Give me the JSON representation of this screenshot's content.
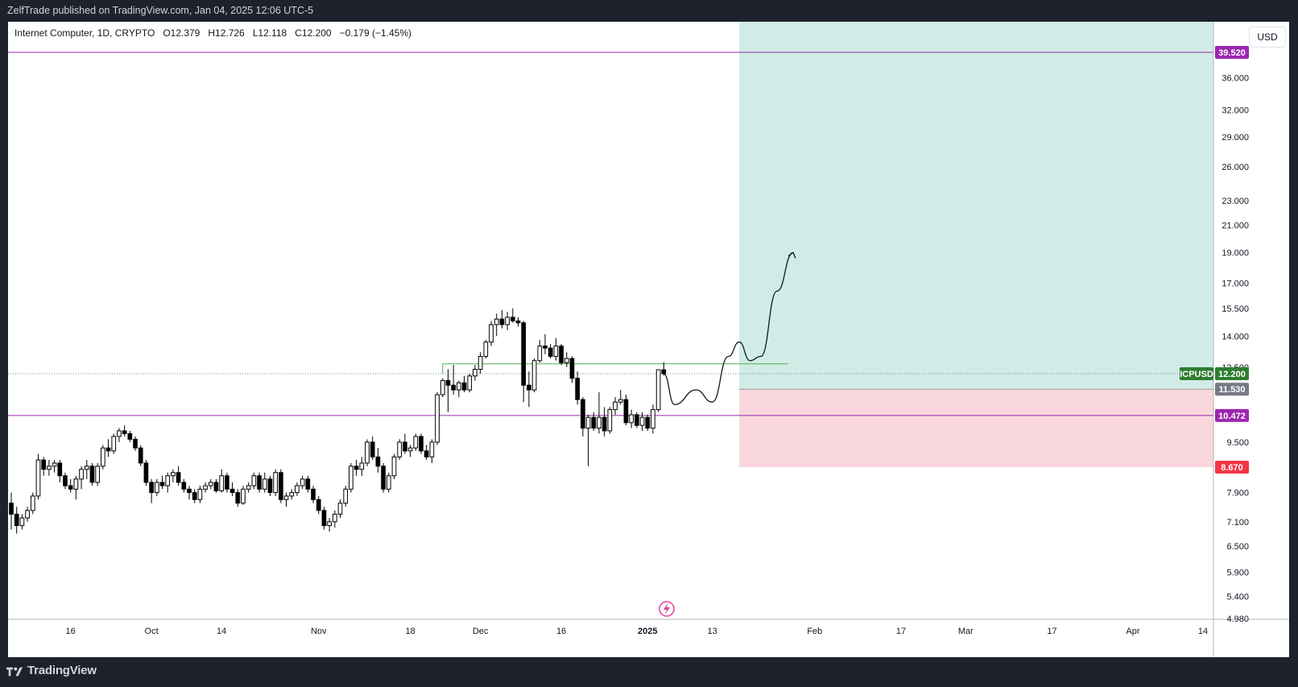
{
  "header": {
    "publish_line": "ZelfTrade published on TradingView.com, Jan 04, 2025 12:06 UTC-5"
  },
  "footer": {
    "brand": "TradingView",
    "logo_icon": "tradingview-logo-icon"
  },
  "legend": {
    "symbol": "Internet Computer, 1D, CRYPTO",
    "o_label": "O",
    "o_value": "12.379",
    "h_label": "H",
    "h_value": "12.726",
    "l_label": "L",
    "l_value": "12.118",
    "c_label": "C",
    "c_value": "12.200",
    "change": "−0.179 (−1.45%)"
  },
  "currency": "USD",
  "colors": {
    "background": "#ffffff",
    "frame": "#1e222d",
    "up_candle": "#ffffff",
    "down_candle": "#000000",
    "wick": "#000000",
    "horizontal_line": "#9c27b0",
    "resistance_line": "#4caf50",
    "target_zone": "#d1ece6",
    "stop_zone": "#fad7dc",
    "ticker_tag": "#2e7d32",
    "entry_tag": "#787b86",
    "stop_tag": "#f23645",
    "level_tag": "#9c27b0"
  },
  "chart_data": {
    "type": "candlestick",
    "symbol": "ICPUSD",
    "timeframe": "1D",
    "y_scale": "log",
    "ylim": [
      4.98,
      48
    ],
    "y_ticks": [
      "4.980",
      "5.400",
      "5.900",
      "6.500",
      "7.100",
      "7.900",
      "8.700",
      "9.500",
      "10.472",
      "11.530",
      "12.200",
      "12.500",
      "14.000",
      "15.500",
      "17.000",
      "19.000",
      "21.000",
      "23.000",
      "26.000",
      "29.000",
      "32.000",
      "36.000",
      "39.520"
    ],
    "x_ticks": [
      "16",
      "Oct",
      "14",
      "Nov",
      "18",
      "Dec",
      "16",
      "2025",
      "13",
      "Feb",
      "17",
      "Mar",
      "17",
      "Apr",
      "14"
    ],
    "x_range": [
      "2024-09-05",
      "2025-04-14"
    ],
    "candles": [
      {
        "date": "2024-09-05",
        "o": 7.6,
        "h": 7.9,
        "l": 6.9,
        "c": 7.3
      },
      {
        "date": "2024-09-06",
        "o": 7.3,
        "h": 7.5,
        "l": 6.8,
        "c": 7.0
      },
      {
        "date": "2024-09-07",
        "o": 7.0,
        "h": 7.3,
        "l": 6.9,
        "c": 7.2
      },
      {
        "date": "2024-09-08",
        "o": 7.2,
        "h": 7.5,
        "l": 7.1,
        "c": 7.4
      },
      {
        "date": "2024-09-09",
        "o": 7.4,
        "h": 7.9,
        "l": 7.3,
        "c": 7.8
      },
      {
        "date": "2024-09-10",
        "o": 7.8,
        "h": 9.1,
        "l": 7.7,
        "c": 8.9
      },
      {
        "date": "2024-09-11",
        "o": 8.9,
        "h": 9.0,
        "l": 8.4,
        "c": 8.6
      },
      {
        "date": "2024-09-12",
        "o": 8.6,
        "h": 8.9,
        "l": 8.4,
        "c": 8.7
      },
      {
        "date": "2024-09-13",
        "o": 8.7,
        "h": 8.9,
        "l": 8.5,
        "c": 8.8
      },
      {
        "date": "2024-09-14",
        "o": 8.8,
        "h": 8.9,
        "l": 8.2,
        "c": 8.4
      },
      {
        "date": "2024-09-15",
        "o": 8.4,
        "h": 8.5,
        "l": 8.0,
        "c": 8.1
      },
      {
        "date": "2024-09-16",
        "o": 8.1,
        "h": 8.3,
        "l": 7.9,
        "c": 8.0
      },
      {
        "date": "2024-09-17",
        "o": 8.0,
        "h": 8.4,
        "l": 7.7,
        "c": 8.3
      },
      {
        "date": "2024-09-18",
        "o": 8.3,
        "h": 8.7,
        "l": 8.0,
        "c": 8.6
      },
      {
        "date": "2024-09-19",
        "o": 8.6,
        "h": 8.9,
        "l": 8.3,
        "c": 8.7
      },
      {
        "date": "2024-09-20",
        "o": 8.7,
        "h": 8.8,
        "l": 8.1,
        "c": 8.2
      },
      {
        "date": "2024-09-21",
        "o": 8.2,
        "h": 8.8,
        "l": 8.1,
        "c": 8.7
      },
      {
        "date": "2024-09-22",
        "o": 8.7,
        "h": 9.4,
        "l": 8.6,
        "c": 9.3
      },
      {
        "date": "2024-09-23",
        "o": 9.3,
        "h": 9.6,
        "l": 9.0,
        "c": 9.2
      },
      {
        "date": "2024-09-24",
        "o": 9.2,
        "h": 9.8,
        "l": 9.1,
        "c": 9.7
      },
      {
        "date": "2024-09-25",
        "o": 9.7,
        "h": 10.0,
        "l": 9.5,
        "c": 9.9
      },
      {
        "date": "2024-09-26",
        "o": 9.9,
        "h": 10.1,
        "l": 9.7,
        "c": 9.8
      },
      {
        "date": "2024-09-27",
        "o": 9.8,
        "h": 9.9,
        "l": 9.5,
        "c": 9.6
      },
      {
        "date": "2024-09-28",
        "o": 9.6,
        "h": 9.7,
        "l": 9.2,
        "c": 9.3
      },
      {
        "date": "2024-09-29",
        "o": 9.3,
        "h": 9.4,
        "l": 8.7,
        "c": 8.8
      },
      {
        "date": "2024-09-30",
        "o": 8.8,
        "h": 8.9,
        "l": 8.1,
        "c": 8.2
      },
      {
        "date": "2024-10-01",
        "o": 8.2,
        "h": 8.3,
        "l": 7.6,
        "c": 7.9
      },
      {
        "date": "2024-10-02",
        "o": 7.9,
        "h": 8.3,
        "l": 7.8,
        "c": 8.2
      },
      {
        "date": "2024-10-03",
        "o": 8.2,
        "h": 8.4,
        "l": 8.0,
        "c": 8.1
      },
      {
        "date": "2024-10-04",
        "o": 8.1,
        "h": 8.5,
        "l": 7.9,
        "c": 8.4
      },
      {
        "date": "2024-10-05",
        "o": 8.4,
        "h": 8.6,
        "l": 8.2,
        "c": 8.5
      },
      {
        "date": "2024-10-06",
        "o": 8.5,
        "h": 8.7,
        "l": 8.1,
        "c": 8.2
      },
      {
        "date": "2024-10-07",
        "o": 8.2,
        "h": 8.3,
        "l": 7.9,
        "c": 8.0
      },
      {
        "date": "2024-10-08",
        "o": 8.0,
        "h": 8.1,
        "l": 7.7,
        "c": 7.9
      },
      {
        "date": "2024-10-09",
        "o": 7.9,
        "h": 8.0,
        "l": 7.6,
        "c": 7.7
      },
      {
        "date": "2024-10-10",
        "o": 7.7,
        "h": 8.1,
        "l": 7.6,
        "c": 8.0
      },
      {
        "date": "2024-10-11",
        "o": 8.0,
        "h": 8.2,
        "l": 7.9,
        "c": 8.1
      },
      {
        "date": "2024-10-12",
        "o": 8.1,
        "h": 8.3,
        "l": 8.0,
        "c": 8.2
      },
      {
        "date": "2024-10-13",
        "o": 8.2,
        "h": 8.3,
        "l": 7.9,
        "c": 7.95
      },
      {
        "date": "2024-10-14",
        "o": 7.95,
        "h": 8.6,
        "l": 7.9,
        "c": 8.4
      },
      {
        "date": "2024-10-15",
        "o": 8.4,
        "h": 8.5,
        "l": 7.9,
        "c": 8.0
      },
      {
        "date": "2024-10-16",
        "o": 8.0,
        "h": 8.2,
        "l": 7.8,
        "c": 7.9
      },
      {
        "date": "2024-10-17",
        "o": 7.9,
        "h": 8.0,
        "l": 7.5,
        "c": 7.6
      },
      {
        "date": "2024-10-18",
        "o": 7.6,
        "h": 8.1,
        "l": 7.55,
        "c": 8.0
      },
      {
        "date": "2024-10-19",
        "o": 8.0,
        "h": 8.2,
        "l": 7.9,
        "c": 8.1
      },
      {
        "date": "2024-10-20",
        "o": 8.1,
        "h": 8.5,
        "l": 8.0,
        "c": 8.4
      },
      {
        "date": "2024-10-21",
        "o": 8.4,
        "h": 8.5,
        "l": 7.9,
        "c": 8.0
      },
      {
        "date": "2024-10-22",
        "o": 8.0,
        "h": 8.5,
        "l": 7.9,
        "c": 8.3
      },
      {
        "date": "2024-10-23",
        "o": 8.3,
        "h": 8.4,
        "l": 7.8,
        "c": 7.9
      },
      {
        "date": "2024-10-24",
        "o": 7.9,
        "h": 8.6,
        "l": 7.8,
        "c": 8.5
      },
      {
        "date": "2024-10-25",
        "o": 8.5,
        "h": 8.6,
        "l": 7.6,
        "c": 7.7
      },
      {
        "date": "2024-10-26",
        "o": 7.7,
        "h": 7.9,
        "l": 7.5,
        "c": 7.8
      },
      {
        "date": "2024-10-27",
        "o": 7.8,
        "h": 8.0,
        "l": 7.7,
        "c": 7.9
      },
      {
        "date": "2024-10-28",
        "o": 7.9,
        "h": 8.2,
        "l": 7.8,
        "c": 8.1
      },
      {
        "date": "2024-10-29",
        "o": 8.1,
        "h": 8.4,
        "l": 8.0,
        "c": 8.3
      },
      {
        "date": "2024-10-30",
        "o": 8.3,
        "h": 8.4,
        "l": 7.9,
        "c": 8.0
      },
      {
        "date": "2024-10-31",
        "o": 8.0,
        "h": 8.1,
        "l": 7.6,
        "c": 7.7
      },
      {
        "date": "2024-11-01",
        "o": 7.7,
        "h": 7.8,
        "l": 7.3,
        "c": 7.4
      },
      {
        "date": "2024-11-02",
        "o": 7.4,
        "h": 7.5,
        "l": 6.9,
        "c": 7.0
      },
      {
        "date": "2024-11-03",
        "o": 7.0,
        "h": 7.2,
        "l": 6.85,
        "c": 7.1
      },
      {
        "date": "2024-11-04",
        "o": 7.1,
        "h": 7.4,
        "l": 6.95,
        "c": 7.3
      },
      {
        "date": "2024-11-05",
        "o": 7.3,
        "h": 7.7,
        "l": 7.2,
        "c": 7.6
      },
      {
        "date": "2024-11-06",
        "o": 7.6,
        "h": 8.1,
        "l": 7.5,
        "c": 8.0
      },
      {
        "date": "2024-11-07",
        "o": 8.0,
        "h": 8.8,
        "l": 7.9,
        "c": 8.7
      },
      {
        "date": "2024-11-08",
        "o": 8.7,
        "h": 8.9,
        "l": 8.4,
        "c": 8.6
      },
      {
        "date": "2024-11-09",
        "o": 8.6,
        "h": 9.0,
        "l": 8.4,
        "c": 8.8
      },
      {
        "date": "2024-11-10",
        "o": 8.8,
        "h": 9.6,
        "l": 8.7,
        "c": 9.5
      },
      {
        "date": "2024-11-11",
        "o": 9.5,
        "h": 9.7,
        "l": 8.9,
        "c": 9.0
      },
      {
        "date": "2024-11-12",
        "o": 9.0,
        "h": 9.3,
        "l": 8.5,
        "c": 8.7
      },
      {
        "date": "2024-11-13",
        "o": 8.7,
        "h": 8.8,
        "l": 7.9,
        "c": 8.0
      },
      {
        "date": "2024-11-14",
        "o": 8.0,
        "h": 8.5,
        "l": 7.9,
        "c": 8.4
      },
      {
        "date": "2024-11-15",
        "o": 8.4,
        "h": 9.1,
        "l": 8.3,
        "c": 9.0
      },
      {
        "date": "2024-11-16",
        "o": 9.0,
        "h": 9.6,
        "l": 8.9,
        "c": 9.5
      },
      {
        "date": "2024-11-17",
        "o": 9.5,
        "h": 9.8,
        "l": 9.1,
        "c": 9.2
      },
      {
        "date": "2024-11-18",
        "o": 9.2,
        "h": 9.4,
        "l": 9.0,
        "c": 9.3
      },
      {
        "date": "2024-11-19",
        "o": 9.3,
        "h": 9.8,
        "l": 9.2,
        "c": 9.7
      },
      {
        "date": "2024-11-20",
        "o": 9.7,
        "h": 9.8,
        "l": 9.1,
        "c": 9.2
      },
      {
        "date": "2024-11-21",
        "o": 9.2,
        "h": 9.4,
        "l": 8.9,
        "c": 9.0
      },
      {
        "date": "2024-11-22",
        "o": 9.0,
        "h": 9.6,
        "l": 8.8,
        "c": 9.5
      },
      {
        "date": "2024-11-23",
        "o": 9.5,
        "h": 11.4,
        "l": 9.4,
        "c": 11.3
      },
      {
        "date": "2024-11-24",
        "o": 11.3,
        "h": 12.0,
        "l": 11.2,
        "c": 11.9
      },
      {
        "date": "2024-11-25",
        "o": 11.9,
        "h": 12.4,
        "l": 10.6,
        "c": 11.7
      },
      {
        "date": "2024-11-26",
        "o": 11.7,
        "h": 12.6,
        "l": 11.3,
        "c": 11.5
      },
      {
        "date": "2024-11-27",
        "o": 11.5,
        "h": 11.9,
        "l": 11.2,
        "c": 11.8
      },
      {
        "date": "2024-11-28",
        "o": 11.8,
        "h": 12.1,
        "l": 11.4,
        "c": 11.5
      },
      {
        "date": "2024-11-29",
        "o": 11.5,
        "h": 12.2,
        "l": 11.4,
        "c": 12.1
      },
      {
        "date": "2024-11-30",
        "o": 12.1,
        "h": 12.6,
        "l": 11.9,
        "c": 12.4
      },
      {
        "date": "2024-12-01",
        "o": 12.4,
        "h": 13.2,
        "l": 12.2,
        "c": 13.0
      },
      {
        "date": "2024-12-02",
        "o": 13.0,
        "h": 13.8,
        "l": 12.9,
        "c": 13.7
      },
      {
        "date": "2024-12-03",
        "o": 13.7,
        "h": 14.8,
        "l": 13.5,
        "c": 14.6
      },
      {
        "date": "2024-12-04",
        "o": 14.6,
        "h": 15.2,
        "l": 14.0,
        "c": 14.9
      },
      {
        "date": "2024-12-05",
        "o": 14.9,
        "h": 15.4,
        "l": 14.4,
        "c": 14.6
      },
      {
        "date": "2024-12-06",
        "o": 14.6,
        "h": 15.3,
        "l": 14.3,
        "c": 15.0
      },
      {
        "date": "2024-12-07",
        "o": 15.0,
        "h": 15.5,
        "l": 14.7,
        "c": 14.8
      },
      {
        "date": "2024-12-08",
        "o": 14.8,
        "h": 15.0,
        "l": 14.5,
        "c": 14.7
      },
      {
        "date": "2024-12-09",
        "o": 14.7,
        "h": 14.8,
        "l": 11.0,
        "c": 11.7
      },
      {
        "date": "2024-12-10",
        "o": 11.7,
        "h": 12.3,
        "l": 10.8,
        "c": 11.5
      },
      {
        "date": "2024-12-11",
        "o": 11.5,
        "h": 12.9,
        "l": 11.4,
        "c": 12.8
      },
      {
        "date": "2024-12-12",
        "o": 12.8,
        "h": 13.8,
        "l": 12.7,
        "c": 13.5
      },
      {
        "date": "2024-12-13",
        "o": 13.5,
        "h": 14.1,
        "l": 13.1,
        "c": 13.4
      },
      {
        "date": "2024-12-14",
        "o": 13.4,
        "h": 13.6,
        "l": 12.9,
        "c": 13.0
      },
      {
        "date": "2024-12-15",
        "o": 13.0,
        "h": 13.9,
        "l": 12.8,
        "c": 13.5
      },
      {
        "date": "2024-12-16",
        "o": 13.5,
        "h": 13.6,
        "l": 12.6,
        "c": 12.7
      },
      {
        "date": "2024-12-17",
        "o": 12.7,
        "h": 13.2,
        "l": 12.5,
        "c": 12.9
      },
      {
        "date": "2024-12-18",
        "o": 12.9,
        "h": 13.0,
        "l": 11.8,
        "c": 12.0
      },
      {
        "date": "2024-12-19",
        "o": 12.0,
        "h": 12.3,
        "l": 10.9,
        "c": 11.1
      },
      {
        "date": "2024-12-20",
        "o": 11.1,
        "h": 11.2,
        "l": 9.7,
        "c": 10.0
      },
      {
        "date": "2024-12-21",
        "o": 10.0,
        "h": 10.5,
        "l": 8.7,
        "c": 10.4
      },
      {
        "date": "2024-12-22",
        "o": 10.4,
        "h": 10.6,
        "l": 9.9,
        "c": 10.0
      },
      {
        "date": "2024-12-23",
        "o": 10.0,
        "h": 11.4,
        "l": 9.8,
        "c": 10.4
      },
      {
        "date": "2024-12-24",
        "o": 10.4,
        "h": 10.8,
        "l": 9.7,
        "c": 9.9
      },
      {
        "date": "2024-12-25",
        "o": 9.9,
        "h": 10.8,
        "l": 9.8,
        "c": 10.7
      },
      {
        "date": "2024-12-26",
        "o": 10.7,
        "h": 11.2,
        "l": 10.5,
        "c": 11.0
      },
      {
        "date": "2024-12-27",
        "o": 11.0,
        "h": 11.5,
        "l": 10.9,
        "c": 11.1
      },
      {
        "date": "2024-12-28",
        "o": 11.1,
        "h": 11.3,
        "l": 10.1,
        "c": 10.2
      },
      {
        "date": "2024-12-29",
        "o": 10.2,
        "h": 10.7,
        "l": 10.0,
        "c": 10.5
      },
      {
        "date": "2024-12-30",
        "o": 10.5,
        "h": 10.6,
        "l": 10.0,
        "c": 10.1
      },
      {
        "date": "2024-12-31",
        "o": 10.1,
        "h": 10.6,
        "l": 9.9,
        "c": 10.4
      },
      {
        "date": "2025-01-01",
        "o": 10.4,
        "h": 10.5,
        "l": 9.9,
        "c": 10.0
      },
      {
        "date": "2025-01-02",
        "o": 10.0,
        "h": 10.9,
        "l": 9.8,
        "c": 10.7
      },
      {
        "date": "2025-01-03",
        "o": 10.7,
        "h": 12.4,
        "l": 10.6,
        "c": 12.38
      },
      {
        "date": "2025-01-04",
        "o": 12.379,
        "h": 12.726,
        "l": 12.118,
        "c": 12.2
      }
    ],
    "horizontal_levels": [
      {
        "price": 39.52,
        "label": "39.520",
        "color": "#9c27b0"
      },
      {
        "price": 10.472,
        "label": "10.472",
        "color": "#9c27b0"
      }
    ],
    "resistance_line": {
      "price": 12.65,
      "from": "2024-11-24",
      "to": "2025-01-27",
      "color": "#4caf50"
    },
    "long_position": {
      "start": "2025-01-18",
      "end": "2025-04-14",
      "entry": 11.53,
      "target": 48,
      "stop": 8.67,
      "entry_label": "11.530",
      "stop_label": "8.670"
    },
    "last_price": {
      "symbol": "ICPUSD",
      "price": 12.2,
      "label": "12.200"
    },
    "projection_path": [
      [
        "2025-01-04",
        12.2
      ],
      [
        "2025-01-06",
        10.9
      ],
      [
        "2025-01-10",
        11.5
      ],
      [
        "2025-01-13",
        11.0
      ],
      [
        "2025-01-16",
        13.0
      ],
      [
        "2025-01-18",
        13.7
      ],
      [
        "2025-01-20",
        12.8
      ],
      [
        "2025-01-22",
        13.0
      ],
      [
        "2025-01-25",
        16.5
      ],
      [
        "2025-01-28",
        19.0
      ]
    ]
  }
}
